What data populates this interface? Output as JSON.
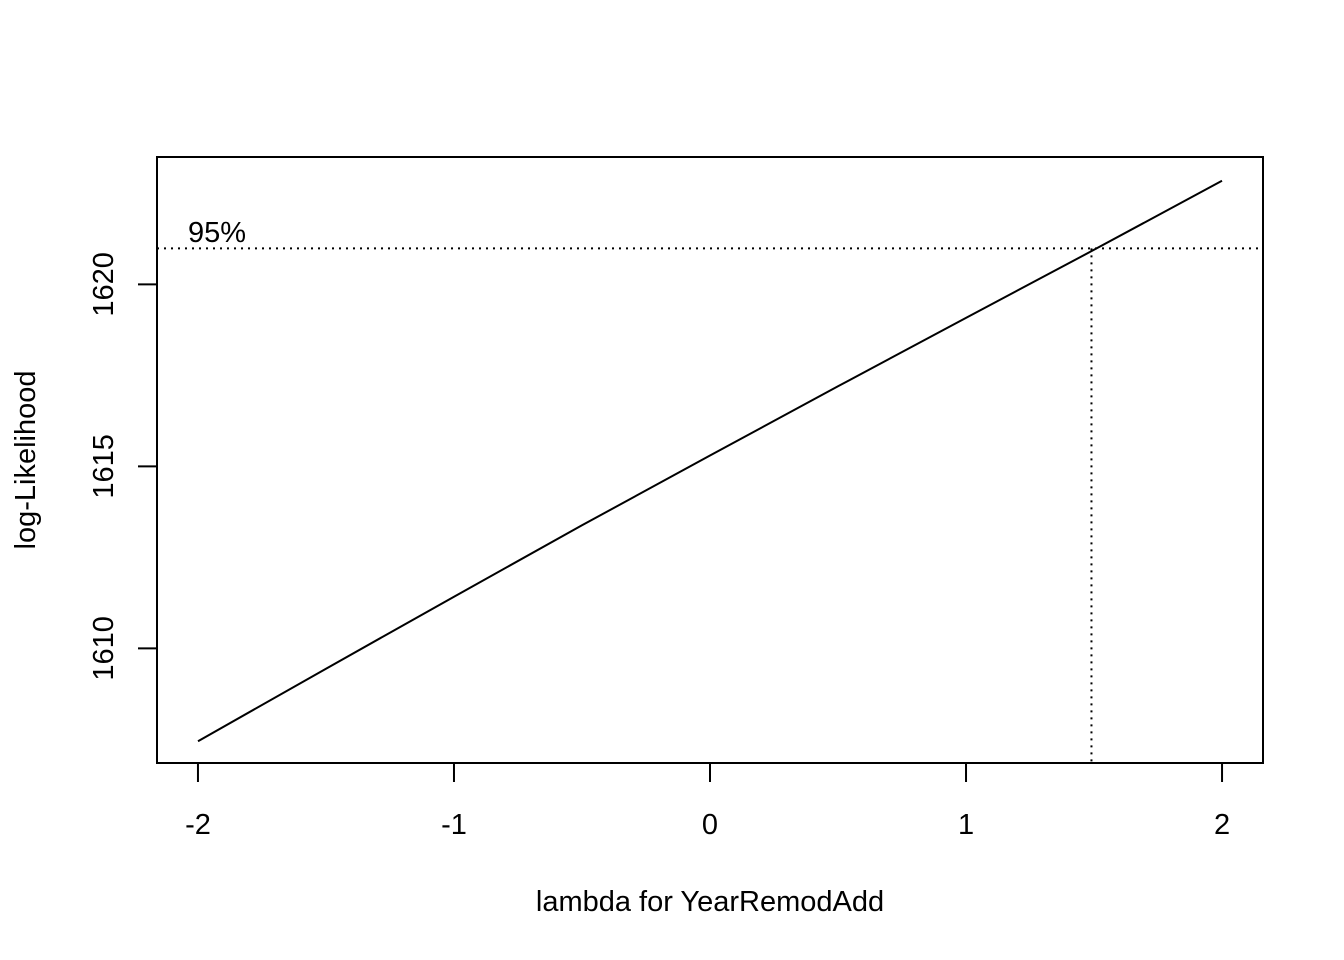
{
  "chart_data": {
    "type": "line",
    "xlabel": "lambda for YearRemodAdd",
    "ylabel": "log-Likelihood",
    "xlim": [
      -2.16,
      2.16
    ],
    "ylim": [
      1606.85,
      1623.5
    ],
    "x_ticks": [
      -2,
      -1,
      0,
      1,
      2
    ],
    "x_tick_labels": [
      "-2",
      "-1",
      "0",
      "1",
      "2"
    ],
    "y_ticks": [
      1610,
      1615,
      1620
    ],
    "y_tick_labels": [
      "1610",
      "1615",
      "1620"
    ],
    "grid": false,
    "series": [
      {
        "x": [
          -2.0,
          -1.5,
          -1.0,
          -0.5,
          0.0,
          0.5,
          1.0,
          1.5,
          2.0
        ],
        "values": [
          1607.45,
          1609.44,
          1611.42,
          1613.38,
          1615.3,
          1617.2,
          1619.08,
          1620.95,
          1622.85
        ]
      }
    ],
    "annotations": {
      "ci_label": "95%",
      "ci_level_y": 1620.99,
      "ci_lambda": 1.49
    }
  }
}
